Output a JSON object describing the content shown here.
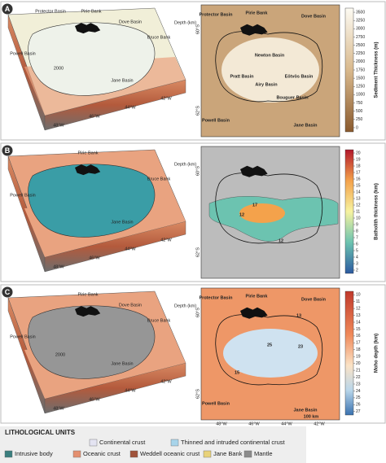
{
  "panels": [
    {
      "label": "A",
      "block_labels": [
        "Protector Basin",
        "Pirie Bank",
        "Dove Basin",
        "Bruce Bank",
        "Powell Basin",
        "Jane Basin",
        "2000"
      ],
      "depth_label": "Depth (km)",
      "longitudes": [
        "48°W",
        "46°W",
        "44°W",
        "42°W"
      ],
      "map_labels": [
        "Protector Basin",
        "Pirie Bank",
        "Dove Basin",
        "Newton Basin",
        "Pratt Basin",
        "Airy Basin",
        "Eötvös Basin",
        "Bouguer Basin",
        "Powell Basin",
        "Jane Basin"
      ],
      "map_latitudes": [
        "60°S",
        "62°S"
      ],
      "colorbar_title": "Sediment Thickness (m)",
      "colorbar_ticks": [
        3500,
        3250,
        3000,
        2750,
        2500,
        2250,
        2000,
        1750,
        1500,
        1250,
        1000,
        750,
        500,
        250,
        0
      ]
    },
    {
      "label": "B",
      "block_labels": [
        "Pirie Bank",
        "Bruce Bank",
        "Powell Basin",
        "Jane Basin"
      ],
      "depth_label": "Depth (km)",
      "longitudes": [
        "48°W",
        "46°W",
        "44°W",
        "42°W"
      ],
      "map_labels": [
        "17",
        "12",
        "12"
      ],
      "map_latitudes": [
        "60°S",
        "62°S"
      ],
      "colorbar_title": "Batholith thickness (km)",
      "colorbar_ticks": [
        20,
        19,
        18,
        17,
        16,
        15,
        14,
        13,
        12,
        11,
        10,
        9,
        8,
        7,
        6,
        5,
        4,
        3,
        2
      ]
    },
    {
      "label": "C",
      "block_labels": [
        "Pirie Bank",
        "Dove Basin",
        "Bruce Bank",
        "Powell Basin",
        "Jane Basin",
        "2000"
      ],
      "depth_label": "Depth (km)",
      "longitudes": [
        "48°W",
        "46°W",
        "44°W",
        "42°W"
      ],
      "map_labels": [
        "Protector Basin",
        "Pirie Bank",
        "Dove Basin",
        "13",
        "15",
        "23",
        "25",
        "Powell Basin",
        "Jane Basin",
        "100 km"
      ],
      "map_latitudes": [
        "60°S",
        "62°S"
      ],
      "map_longitudes": [
        "48°W",
        "46°W",
        "44°W",
        "42°W"
      ],
      "colorbar_title": "Moho depth (km)",
      "colorbar_ticks": [
        10,
        11,
        12,
        13,
        14,
        15,
        16,
        17,
        18,
        19,
        20,
        21,
        22,
        23,
        24,
        25,
        26,
        27
      ]
    }
  ],
  "legend": {
    "title": "LITHOLOGICAL UNITS",
    "items": [
      "Continental crust",
      "Thinned and intruded continental crust",
      "Intrusive body",
      "Oceanic crust",
      "Weddell oceanic crust",
      "Jane Bank",
      "Mantle"
    ]
  }
}
